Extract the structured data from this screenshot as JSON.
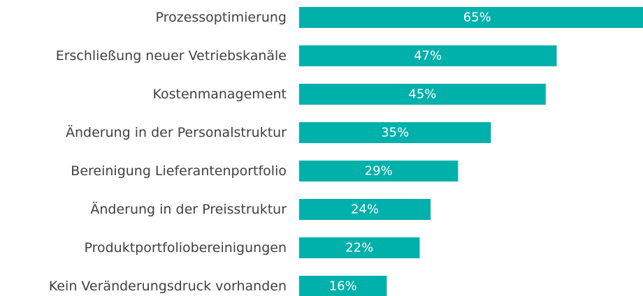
{
  "chart_data": {
    "type": "barh",
    "categories": [
      "Prozessoptimierung",
      "Erschließung neuer Vetriebskanäle",
      "Kostenmanagement",
      "Änderung in der Personalstruktur",
      "Bereinigung Lieferantenportfolio",
      "Änderung in der Preisstruktur",
      "Produktportfoliobereinigungen",
      "Kein Veränderungsdruck vorhanden"
    ],
    "values": [
      65,
      47,
      45,
      35,
      29,
      24,
      22,
      16
    ],
    "value_labels": [
      "65%",
      "47%",
      "45%",
      "35%",
      "29%",
      "24%",
      "22%",
      "16%"
    ],
    "color": "#00b0aa"
  }
}
